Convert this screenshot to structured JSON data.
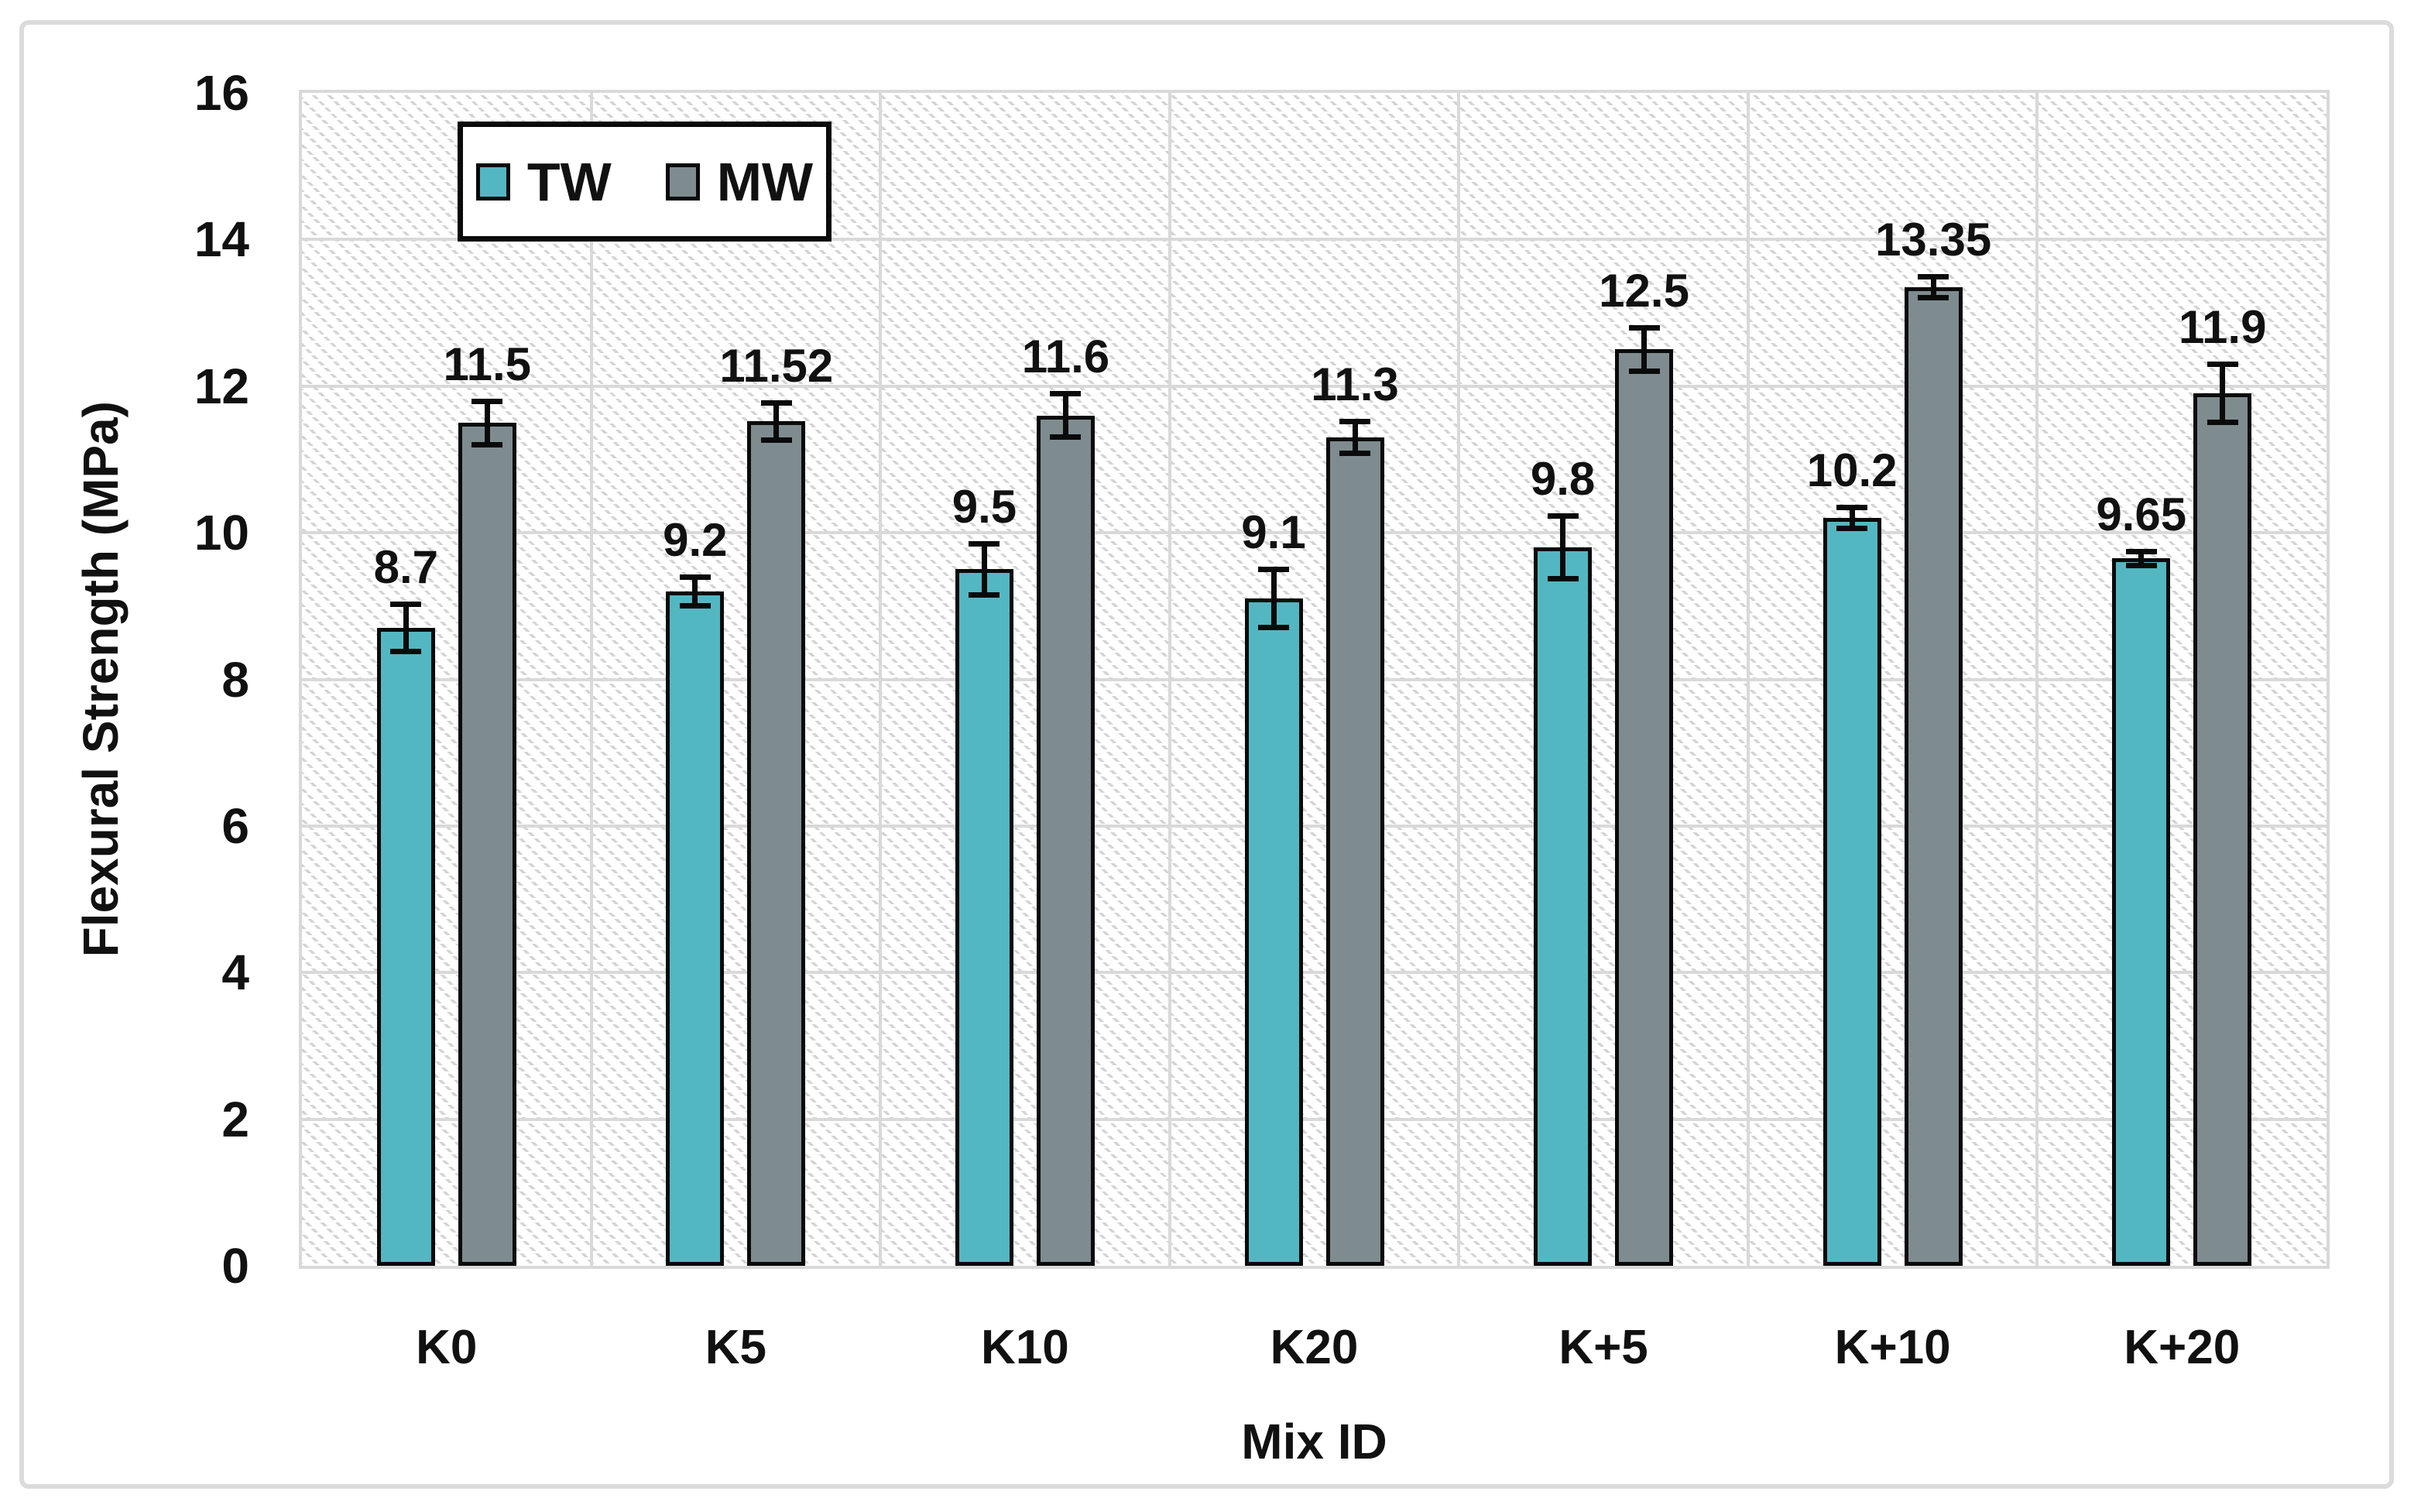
{
  "chart_data": {
    "type": "bar",
    "title": "",
    "xlabel": "Mix ID",
    "ylabel": "Flexural Strength (MPa)",
    "categories": [
      "K0",
      "K5",
      "K10",
      "K20",
      "K+5",
      "K+10",
      "K+20"
    ],
    "series": [
      {
        "name": "TW",
        "color": "#53B7C2",
        "values": [
          8.7,
          9.2,
          9.5,
          9.1,
          9.8,
          10.2,
          9.65
        ],
        "error_bars": [
          0.33,
          0.2,
          0.35,
          0.4,
          0.43,
          0.15,
          0.1
        ]
      },
      {
        "name": "MW",
        "color": "#7E8C90",
        "values": [
          11.5,
          11.52,
          11.6,
          11.3,
          12.5,
          13.35,
          11.9
        ],
        "error_bars": [
          0.3,
          0.26,
          0.3,
          0.22,
          0.3,
          0.15,
          0.4
        ]
      }
    ],
    "ylim": [
      0,
      16
    ],
    "ytick_step": 2,
    "yticks": [
      "0",
      "2",
      "4",
      "6",
      "8",
      "10",
      "12",
      "14",
      "16"
    ],
    "grid": true,
    "legend_position": "top-left-inside",
    "value_labels_shown": true
  },
  "colors": {
    "bar_outline": "#0a0a0a",
    "gridline": "#D9D9D9",
    "plot_hatch": "#D4D4D4",
    "frame_border": "#DBDBDB",
    "text": "#111111",
    "background": "#ffffff"
  }
}
